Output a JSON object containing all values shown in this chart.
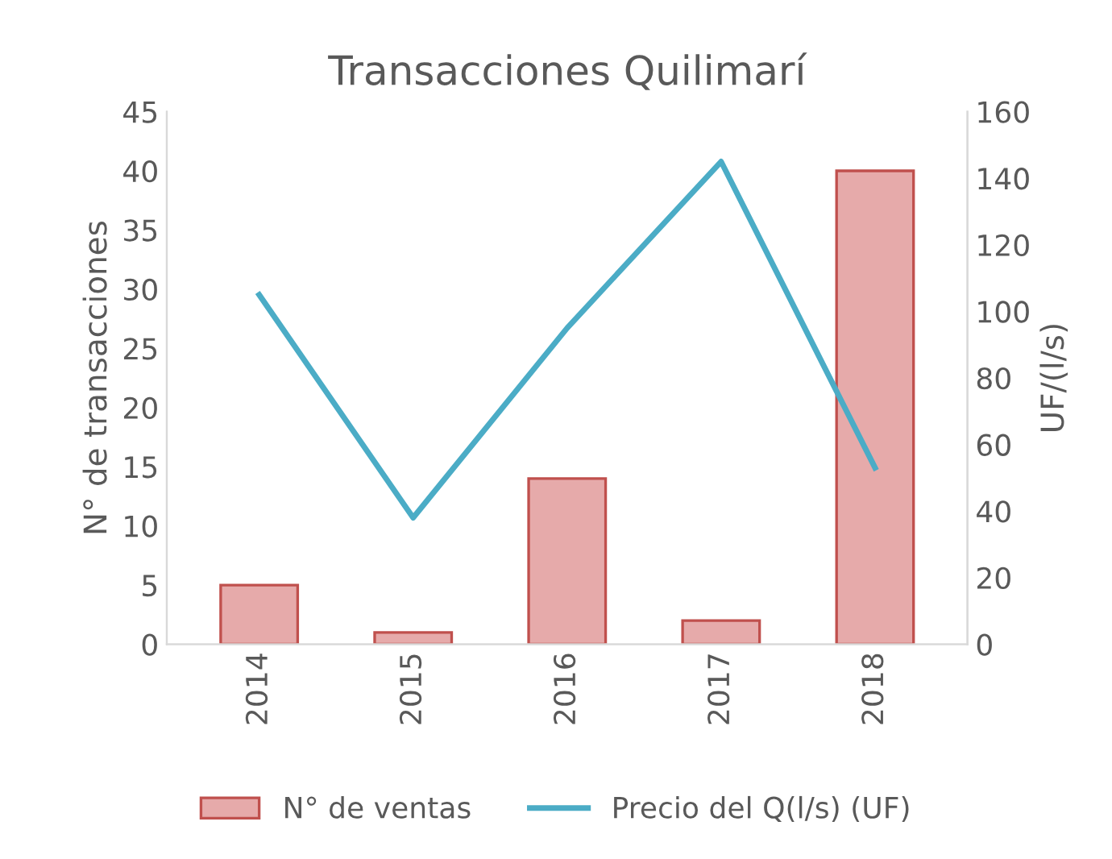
{
  "chart_data": {
    "type": "bar",
    "title": "Transacciones Quilimarí",
    "ylabel": "N° de transacciones",
    "y2label": "UF/(l/s)",
    "categories": [
      "2014",
      "2015",
      "2016",
      "2017",
      "2018"
    ],
    "series": [
      {
        "name": "N° de ventas",
        "color": "#e6aaaa",
        "values": [
          5,
          1,
          14,
          2,
          40
        ]
      },
      {
        "name": "Precio del Q(l/s) (UF)",
        "type": "line",
        "axis": "y2",
        "color": "#4bacc6",
        "values": [
          105,
          38,
          95,
          145,
          53
        ]
      }
    ],
    "ylim": [
      0,
      45
    ],
    "yticks": [
      0,
      5,
      10,
      15,
      20,
      25,
      30,
      35,
      40,
      45
    ],
    "y2lim": [
      0,
      160
    ],
    "y2ticks": [
      0,
      20,
      40,
      60,
      80,
      100,
      120,
      140,
      160
    ],
    "grid": false,
    "legend": "bottom",
    "marker": "none",
    "line_style": "solid"
  }
}
